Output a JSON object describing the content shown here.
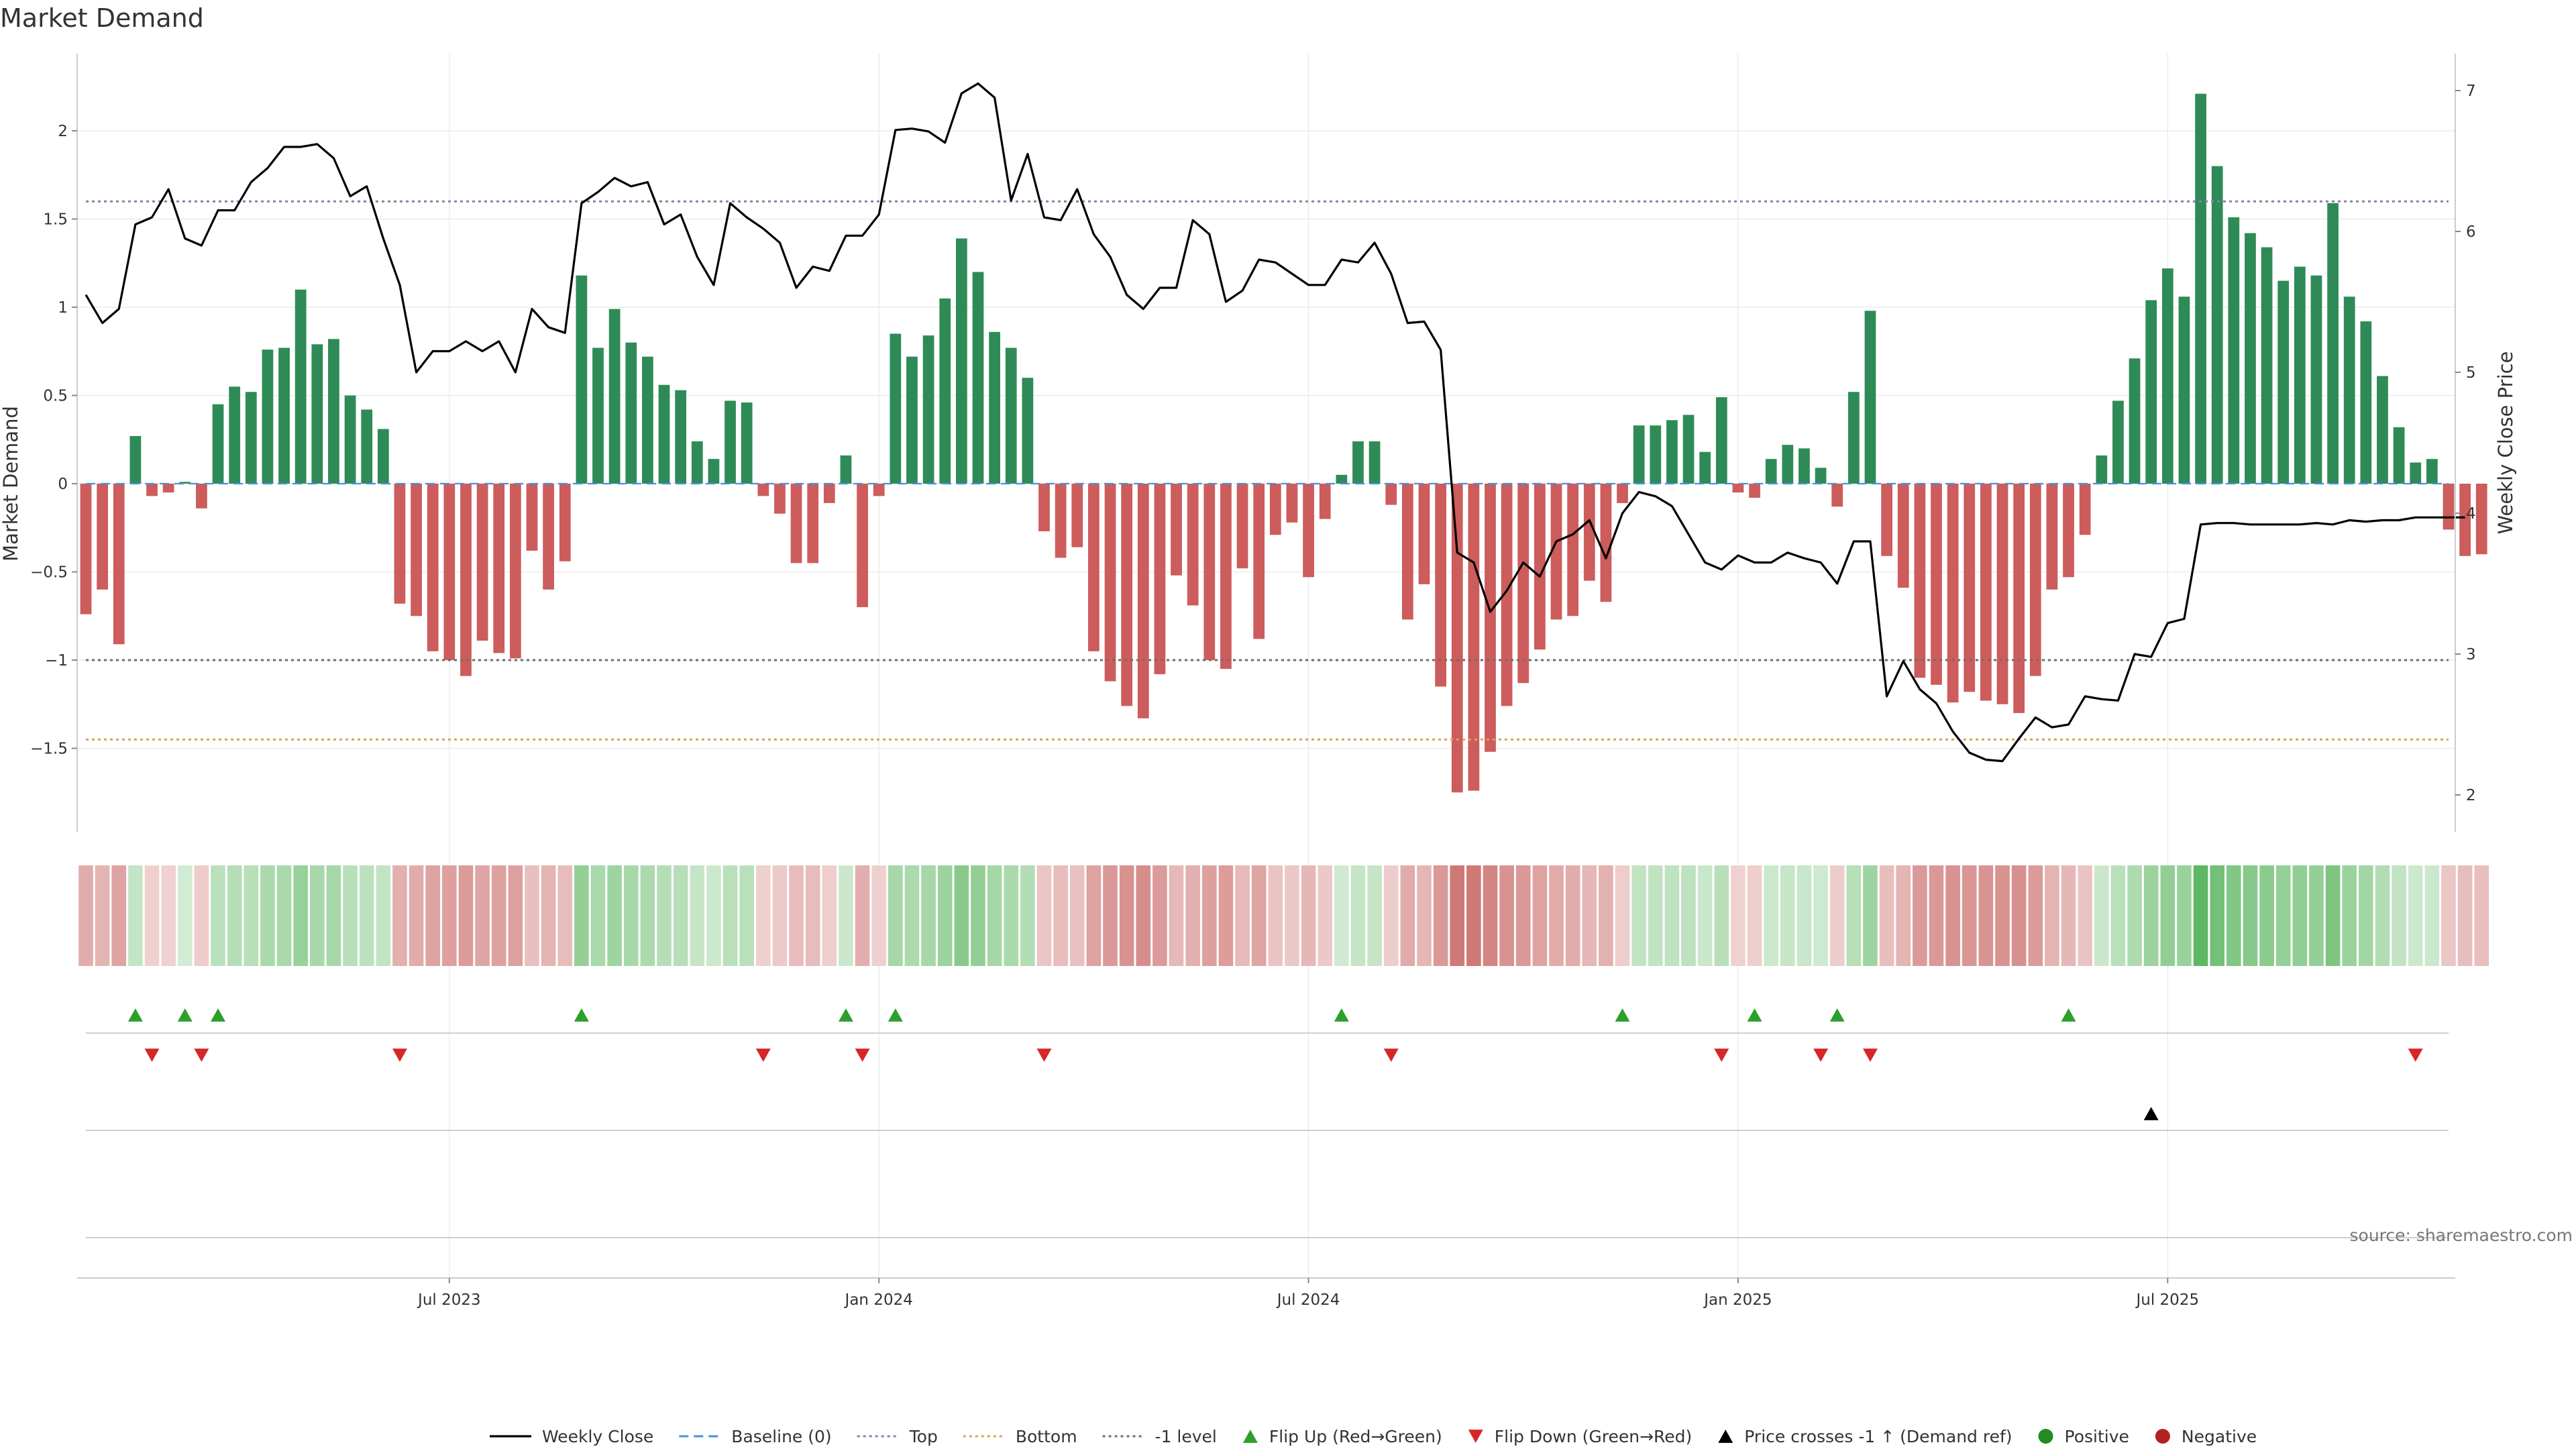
{
  "title": "Market Demand",
  "source": "source: sharemaestro.com",
  "colors": {
    "positive": "#2e8b57",
    "negative": "#cd5c5c",
    "line": "#000000",
    "top": "#8b7fa8",
    "bottom": "#e0a24a",
    "neg1": "#6e6e6e",
    "baseline": "#4a90d9",
    "flip_up": "#2ca02c",
    "flip_down": "#d62728",
    "cross": "#000000",
    "positive_dot": "#228b22",
    "negative_dot": "#b22222"
  },
  "chart_data": {
    "type": "bar",
    "title": "Market Demand",
    "ylabel": "Market Demand",
    "y2label": "Weekly Close Price",
    "ylim": [
      -2.0,
      2.45
    ],
    "y2lim": [
      1.85,
      7.15
    ],
    "yticks": [
      -1.5,
      -1,
      -0.5,
      0,
      0.5,
      1,
      1.5,
      2
    ],
    "ytick_labels": [
      "−1.5",
      "−1",
      "−0.5",
      "0",
      "0.5",
      "1",
      "1.5",
      "2"
    ],
    "y2ticks": [
      2,
      3,
      4,
      5,
      6,
      7
    ],
    "y2tick_labels": [
      "2",
      "3",
      "4",
      "5",
      "6",
      "7"
    ],
    "start_date": "2023-01-01",
    "week_count": 144,
    "xtick_weeks": [
      22,
      48,
      74,
      100,
      126
    ],
    "xtick_labels": [
      "Jul 2023",
      "Jan 2024",
      "Jul 2024",
      "Jan 2025",
      "Jul 2025"
    ],
    "levels": {
      "top": 1.6,
      "bottom": -1.45,
      "neg1": -1.0,
      "baseline": 0
    },
    "demand": [
      -0.74,
      -0.6,
      -0.91,
      0.27,
      -0.07,
      -0.05,
      0.01,
      -0.14,
      0.45,
      0.55,
      0.52,
      0.76,
      0.77,
      1.1,
      0.79,
      0.82,
      0.5,
      0.42,
      0.31,
      -0.68,
      -0.75,
      -0.95,
      -1.0,
      -1.09,
      -0.89,
      -0.96,
      -0.99,
      -0.38,
      -0.6,
      -0.44,
      1.18,
      0.77,
      0.99,
      0.8,
      0.72,
      0.56,
      0.53,
      0.24,
      0.14,
      0.47,
      0.46,
      -0.07,
      -0.17,
      -0.45,
      -0.45,
      -0.11,
      0.16,
      -0.7,
      -0.07,
      0.85,
      0.72,
      0.84,
      1.05,
      1.39,
      1.2,
      0.86,
      0.77,
      0.6,
      -0.27,
      -0.42,
      -0.36,
      -0.95,
      -1.12,
      -1.26,
      -1.33,
      -1.08,
      -0.52,
      -0.69,
      -1.0,
      -1.05,
      -0.48,
      -0.88,
      -0.29,
      -0.22,
      -0.53,
      -0.2,
      0.05,
      0.24,
      0.24,
      -0.12,
      -0.77,
      -0.57,
      -1.15,
      -1.75,
      -1.74,
      -1.52,
      -1.26,
      -1.13,
      -0.94,
      -0.77,
      -0.75,
      -0.55,
      -0.67,
      -0.11,
      0.33,
      0.33,
      0.36,
      0.39,
      0.18,
      0.49,
      -0.05,
      -0.08,
      0.14,
      0.22,
      0.2,
      0.09,
      -0.13,
      0.52,
      0.98,
      -0.41,
      -0.59,
      -1.1,
      -1.14,
      -1.24,
      -1.18,
      -1.23,
      -1.25,
      -1.3,
      -1.09,
      -0.6,
      -0.53,
      -0.29,
      0.16,
      0.47,
      0.71,
      1.04,
      1.22,
      1.06,
      2.21,
      1.8,
      1.51,
      1.42,
      1.34,
      1.15,
      1.23,
      1.18,
      1.59,
      1.06,
      0.92,
      0.61,
      0.32,
      0.12,
      0.14,
      -0.26,
      -0.41,
      -0.4
    ],
    "close": [
      5.55,
      5.35,
      5.45,
      6.05,
      6.1,
      6.3,
      5.95,
      5.9,
      6.15,
      6.15,
      6.35,
      6.45,
      6.6,
      6.6,
      6.62,
      6.52,
      6.25,
      6.32,
      5.95,
      5.62,
      5.0,
      5.15,
      5.15,
      5.22,
      5.15,
      5.22,
      5.0,
      5.45,
      5.32,
      5.28,
      6.2,
      6.28,
      6.38,
      6.32,
      6.35,
      6.05,
      6.12,
      5.82,
      5.62,
      6.2,
      6.1,
      6.02,
      5.92,
      5.6,
      5.75,
      5.72,
      5.97,
      5.97,
      6.12,
      6.72,
      6.73,
      6.71,
      6.63,
      6.98,
      7.05,
      6.95,
      6.22,
      6.55,
      6.1,
      6.08,
      6.3,
      5.98,
      5.82,
      5.55,
      5.45,
      5.6,
      5.6,
      6.08,
      5.98,
      5.5,
      5.58,
      5.8,
      5.78,
      5.7,
      5.62,
      5.62,
      5.8,
      5.78,
      5.92,
      5.7,
      5.35,
      5.36,
      5.16,
      3.72,
      3.65,
      3.3,
      3.45,
      3.65,
      3.55,
      3.8,
      3.85,
      3.95,
      3.68,
      4.0,
      4.15,
      4.12,
      4.05,
      3.85,
      3.65,
      3.6,
      3.7,
      3.65,
      3.65,
      3.72,
      3.68,
      3.65,
      3.5,
      3.8,
      3.8,
      2.7,
      2.95,
      2.75,
      2.65,
      2.45,
      2.3,
      2.25,
      2.24,
      2.4,
      2.55,
      2.48,
      2.5,
      2.7,
      2.68,
      2.67,
      3.0,
      2.98,
      3.22,
      3.25,
      3.92,
      3.93,
      3.93,
      3.92,
      3.92,
      3.92,
      3.92,
      3.93,
      3.92,
      3.95,
      3.94,
      3.95,
      3.95,
      3.97,
      3.97,
      3.97,
      3.97
    ],
    "strip_labels": [],
    "flip_up_weeks": [
      3,
      6,
      8,
      30,
      46,
      49,
      76,
      93,
      101,
      106,
      120
    ],
    "flip_down_weeks": [
      4,
      7,
      19,
      41,
      47,
      58,
      79,
      99,
      105,
      108,
      141
    ],
    "cross_weeks": [
      125
    ]
  },
  "legend": [
    {
      "key": "line",
      "label": "Weekly Close"
    },
    {
      "key": "baseline",
      "label": "Baseline (0)"
    },
    {
      "key": "top",
      "label": "Top"
    },
    {
      "key": "bottom",
      "label": "Bottom"
    },
    {
      "key": "neg1",
      "label": "-1 level"
    },
    {
      "key": "flip_up",
      "label": "Flip Up (Red→Green)"
    },
    {
      "key": "flip_down",
      "label": "Flip Down (Green→Red)"
    },
    {
      "key": "cross",
      "label": "Price crosses -1 ↑ (Demand ref)"
    },
    {
      "key": "positive_dot",
      "label": "Positive"
    },
    {
      "key": "negative_dot",
      "label": "Negative"
    }
  ]
}
